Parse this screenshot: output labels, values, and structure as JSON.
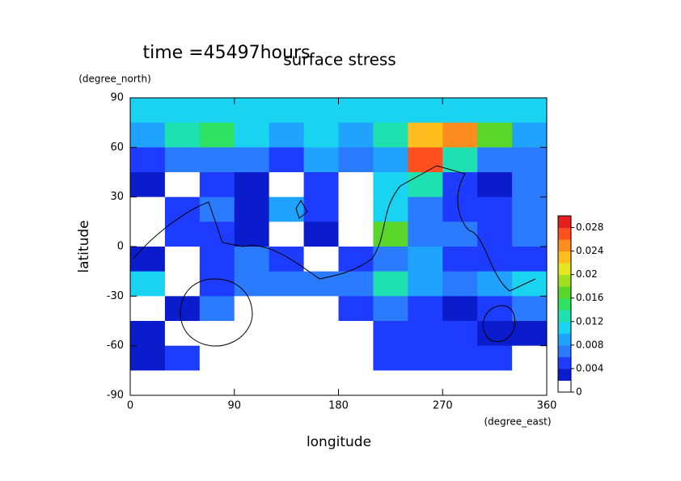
{
  "chart_data": {
    "type": "heatmap",
    "title": "surface stress",
    "subtitle": "time =45497hours",
    "xlabel": "longitude",
    "ylabel": "latitude",
    "xunit": "(degree_east)",
    "yunit": "(degree_north)",
    "xlim": [
      0,
      360
    ],
    "ylim": [
      -90,
      90
    ],
    "xticks": [
      0,
      90,
      180,
      270,
      360
    ],
    "yticks": [
      -90,
      -60,
      -30,
      0,
      30,
      60,
      90
    ],
    "x": [
      15,
      45,
      75,
      105,
      135,
      165,
      195,
      225,
      255,
      285,
      315,
      345
    ],
    "y": [
      82.5,
      67.5,
      52.5,
      37.5,
      22.5,
      7.5,
      -7.5,
      -22.5,
      -37.5,
      -52.5,
      -67.5,
      -82.5
    ],
    "z": [
      [
        0.01,
        0.01,
        0.01,
        0.01,
        0.01,
        0.01,
        0.01,
        0.01,
        0.01,
        0.01,
        0.01,
        0.011
      ],
      [
        0.008,
        0.012,
        0.014,
        0.01,
        0.009,
        0.01,
        0.009,
        0.013,
        0.022,
        0.024,
        0.016,
        0.008
      ],
      [
        0.005,
        0.006,
        0.007,
        0.006,
        0.005,
        0.008,
        0.006,
        0.009,
        0.026,
        0.012,
        0.007,
        0.006
      ],
      [
        0.003,
        0,
        0.004,
        0.002,
        0,
        0.004,
        0,
        0.01,
        0.012,
        0.005,
        0.003,
        0.007
      ],
      [
        0,
        0.004,
        0.006,
        0.002,
        0.008,
        0.004,
        0,
        0.01,
        0.006,
        0.005,
        0.004,
        0.006
      ],
      [
        0,
        0.004,
        0.004,
        0.003,
        0,
        0.003,
        0,
        0.016,
        0.007,
        0.006,
        0.005,
        0.006
      ],
      [
        0.003,
        0,
        0.005,
        0.006,
        0.004,
        0,
        0.004,
        0.006,
        0.008,
        0.005,
        0.005,
        0.004
      ],
      [
        0.01,
        0,
        0.004,
        0.006,
        0.006,
        0.006,
        0.006,
        0.012,
        0.008,
        0.007,
        0.008,
        0.01
      ],
      [
        0,
        0.003,
        0.006,
        0,
        0,
        0,
        0.004,
        0.006,
        0.004,
        0.003,
        0.004,
        0.006
      ],
      [
        0.002,
        0,
        0,
        0,
        0,
        0,
        0,
        0.004,
        0.004,
        0.004,
        0.003,
        0.003
      ],
      [
        0.003,
        0.004,
        0,
        0,
        0,
        0,
        0,
        0.004,
        0.004,
        0.004,
        0.004,
        0
      ],
      [
        0,
        0,
        0,
        0,
        0,
        0,
        0,
        0,
        0,
        0,
        0,
        0
      ]
    ],
    "clim": [
      0,
      0.03
    ],
    "cticks": [
      0,
      0.004,
      0.008,
      0.012,
      0.016,
      0.02,
      0.024,
      0.028
    ],
    "colors": [
      "#ffffff",
      "#0a1ccc",
      "#1e3cff",
      "#2a7bff",
      "#1fa3ff",
      "#19d3f0",
      "#1ee0b0",
      "#30e060",
      "#5ad52a",
      "#a0e020",
      "#e6e61e",
      "#ffbe1e",
      "#ff8c1e",
      "#ff501e",
      "#e61e1e"
    ]
  }
}
